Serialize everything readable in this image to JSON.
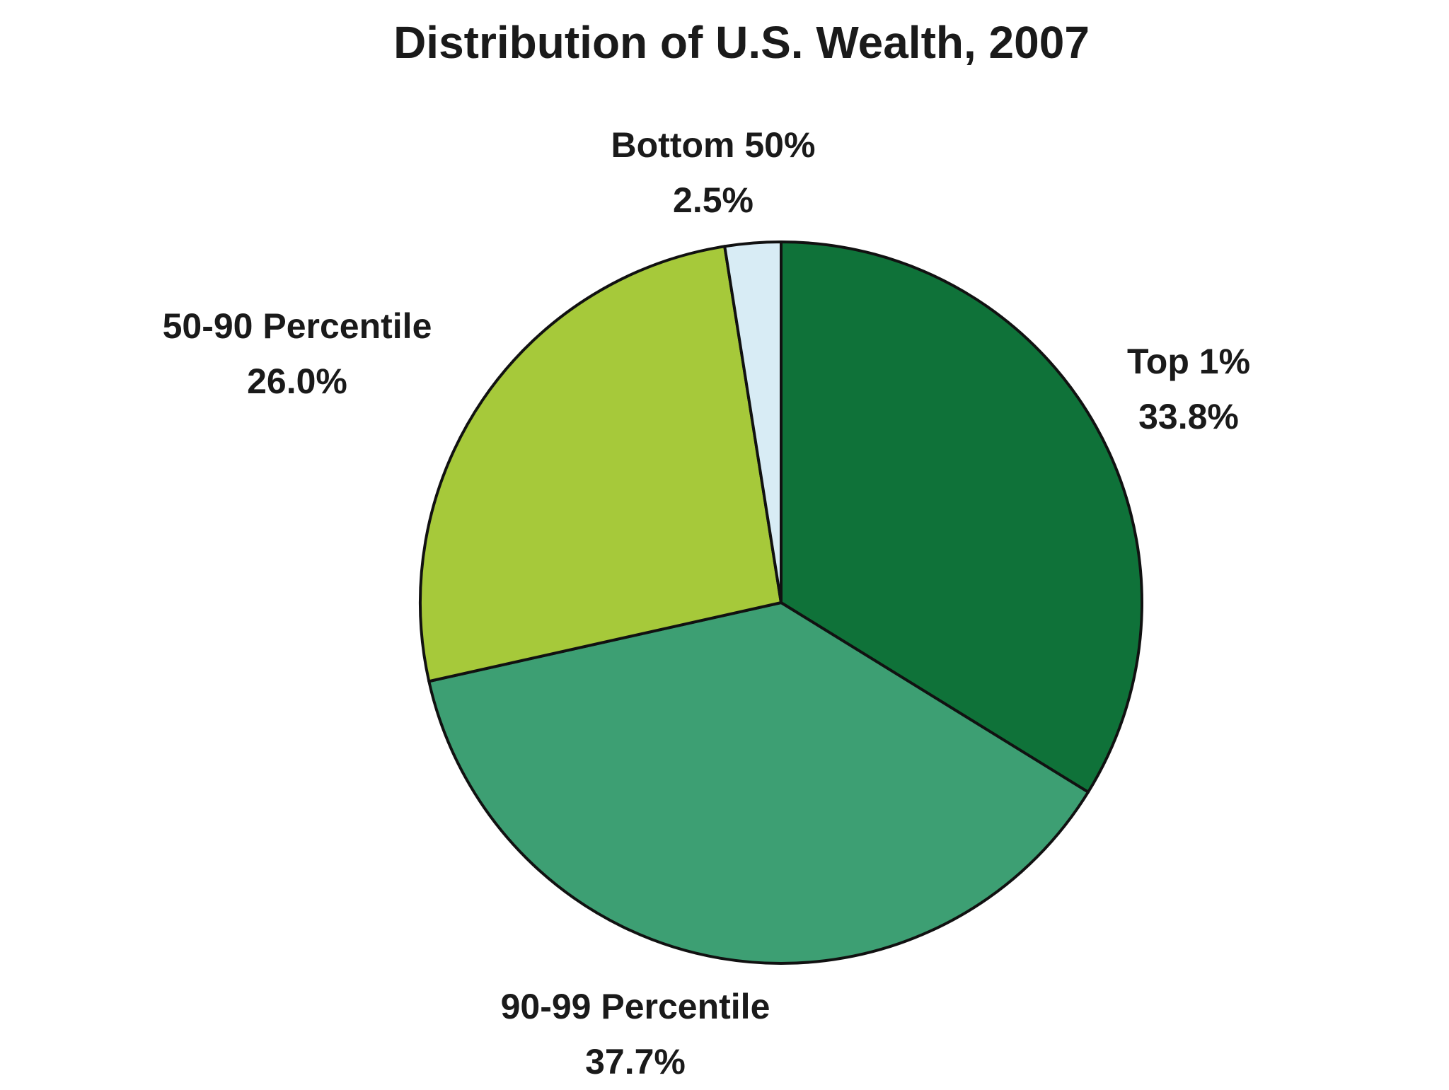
{
  "chart_data": {
    "type": "pie",
    "title": "Distribution of U.S. Wealth, 2007",
    "slices": [
      {
        "label": "Top 1%",
        "value_label": "33.8%",
        "value": 33.8,
        "color": "#0f7239"
      },
      {
        "label": "90-99 Percentile",
        "value_label": "37.7%",
        "value": 37.7,
        "color": "#3d9f73"
      },
      {
        "label": "50-90 Percentile",
        "value_label": "26.0%",
        "value": 26.0,
        "color": "#a6c93a"
      },
      {
        "label": "Bottom 50%",
        "value_label": "2.5%",
        "value": 2.5,
        "color": "#d8ecf5"
      }
    ],
    "start_angle_deg": 0,
    "direction": "clockwise",
    "legend": "none"
  }
}
